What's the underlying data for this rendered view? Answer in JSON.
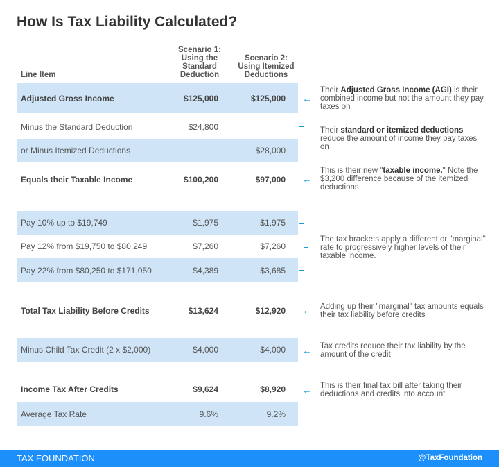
{
  "title": "How Is Tax Liability Calculated?",
  "headers": {
    "line_item": "Line Item",
    "scenario1": [
      "Scenario 1:",
      "Using the",
      "Standard",
      "Deduction"
    ],
    "scenario2": [
      "Scenario 2:",
      "Using Itemized",
      "Deductions"
    ]
  },
  "rows": [
    {
      "label": "Adjusted Gross Income",
      "s1": "$125,000",
      "s2": "$125,000"
    },
    {
      "label": "Minus the Standard Deduction",
      "s1": "$24,800",
      "s2": ""
    },
    {
      "label": "or Minus Itemized Deductions",
      "s1": "",
      "s2": "$28,000"
    },
    {
      "label": "Equals their Taxable Income",
      "s1": "$100,200",
      "s2": "$97,000"
    },
    {
      "label": "Pay 10% up to $19,749",
      "s1": "$1,975",
      "s2": "$1,975"
    },
    {
      "label": "Pay 12% from $19,750 to $80,249",
      "s1": "$7,260",
      "s2": "$7,260"
    },
    {
      "label": "Pay 22% from $80,250 to $171,050",
      "s1": "$4,389",
      "s2": "$3,685"
    },
    {
      "label": "Total Tax Liability Before Credits",
      "s1": "$13,624",
      "s2": "$12,920"
    },
    {
      "label": "Minus Child Tax Credit (2 x $2,000)",
      "s1": "$4,000",
      "s2": "$4,000"
    },
    {
      "label": "Income Tax After Credits",
      "s1": "$9,624",
      "s2": "$8,920"
    },
    {
      "label": "Average Tax Rate",
      "s1": "9.6%",
      "s2": "9.2%"
    }
  ],
  "notes": {
    "agi": {
      "pre": "Their ",
      "bold": "Adjusted Gross Income (AGI)",
      "post": " is their combined income but not the amount they pay taxes on"
    },
    "deductions": {
      "pre": "Their ",
      "bold": "standard or itemized deductions",
      "post": " reduce the amount of income they pay taxes on"
    },
    "taxable": {
      "pre": "This is their new \"",
      "bold": "taxable income.",
      "post": "\" Note the $3,200 difference because of the itemized deductions"
    },
    "brackets": "The tax brackets apply a different or \"marginal\" rate to progressively higher levels of their taxable income.",
    "total": "Adding up their \"marginal\" tax amounts equals their tax liability before credits",
    "credits": "Tax credits reduce their tax liability by the amount of the credit",
    "final": "This is their final tax bill after taking their deductions and credits into account"
  },
  "arrow_glyph": "←",
  "colors": {
    "row_highlight": "#cfe4f6",
    "accent": "#1c9ad6",
    "footer": "#1d8ffa"
  },
  "footer": {
    "brand": "TAX FOUNDATION",
    "handle": "@TaxFoundation"
  }
}
